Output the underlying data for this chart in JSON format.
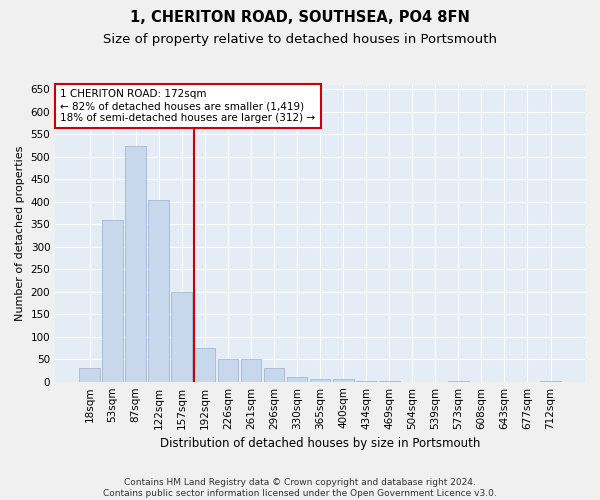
{
  "title": "1, CHERITON ROAD, SOUTHSEA, PO4 8FN",
  "subtitle": "Size of property relative to detached houses in Portsmouth",
  "xlabel": "Distribution of detached houses by size in Portsmouth",
  "ylabel": "Number of detached properties",
  "bar_labels": [
    "18sqm",
    "53sqm",
    "87sqm",
    "122sqm",
    "157sqm",
    "192sqm",
    "226sqm",
    "261sqm",
    "296sqm",
    "330sqm",
    "365sqm",
    "400sqm",
    "434sqm",
    "469sqm",
    "504sqm",
    "539sqm",
    "573sqm",
    "608sqm",
    "643sqm",
    "677sqm",
    "712sqm"
  ],
  "bar_values": [
    30,
    360,
    525,
    405,
    200,
    75,
    50,
    50,
    30,
    10,
    5,
    5,
    2,
    1,
    0,
    0,
    1,
    0,
    0,
    0,
    1
  ],
  "bar_color": "#c8d8ec",
  "bar_edge_color": "#9ab0cc",
  "background_color": "#e4ecf5",
  "grid_color": "#ffffff",
  "vline_x": 4.55,
  "vline_color": "#cc0000",
  "annotation_line1": "1 CHERITON ROAD: 172sqm",
  "annotation_line2": "← 82% of detached houses are smaller (1,419)",
  "annotation_line3": "18% of semi-detached houses are larger (312) →",
  "annotation_box_color": "#ffffff",
  "annotation_box_edge": "#cc0000",
  "ylim": [
    0,
    660
  ],
  "yticks": [
    0,
    50,
    100,
    150,
    200,
    250,
    300,
    350,
    400,
    450,
    500,
    550,
    600,
    650
  ],
  "footnote": "Contains HM Land Registry data © Crown copyright and database right 2024.\nContains public sector information licensed under the Open Government Licence v3.0.",
  "title_fontsize": 10.5,
  "subtitle_fontsize": 9.5,
  "xlabel_fontsize": 8.5,
  "ylabel_fontsize": 8,
  "tick_fontsize": 7.5,
  "footnote_fontsize": 6.5
}
